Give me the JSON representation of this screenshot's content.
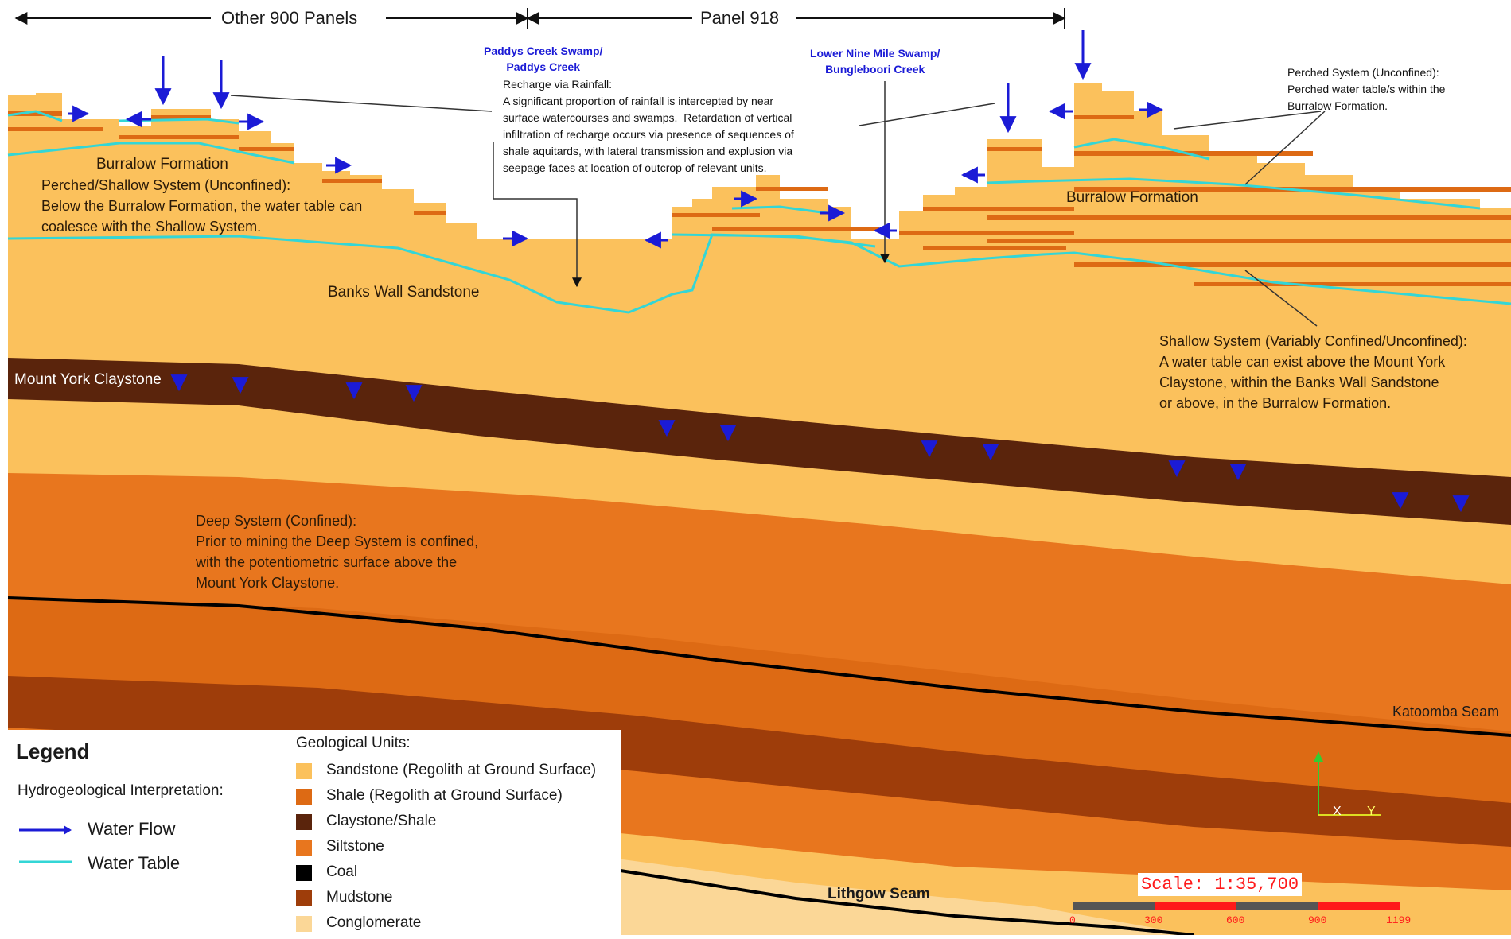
{
  "extent": {
    "other_panels": "Other 900 Panels",
    "panel": "Panel 918"
  },
  "swamps": {
    "paddys": "Paddys Creek Swamp/\nPaddys Creek",
    "lower_nine_mile": "Lower Nine Mile Swamp/\nBungleboori Creek"
  },
  "notes": {
    "recharge": "Recharge via Rainfall:\nA significant proportion of rainfall is intercepted by near\nsurface watercourses and swamps.  Retardation of vertical\ninfiltration of recharge occurs via presence of sequences of\nshale aquitards, with lateral transmission and explusion via\nseepage faces at location of outcrop of relevant units.",
    "perched": "Perched System (Unconfined):\nPerched water table/s within the\nBurralow Formation.",
    "perched_shallow": "Perched/Shallow System (Unconfined):\nBelow the Burralow Formation, the water table can\ncoalesce with the Shallow System.",
    "shallow": "Shallow System (Variably Confined/Unconfined):\nA water table can exist above the Mount York\nClaystone, within the Banks Wall Sandstone\nor above, in the Burralow Formation.",
    "deep": "Deep System (Confined):\nPrior to mining the Deep System is confined,\nwith the potentiometric surface above the\nMount York Claystone."
  },
  "units": {
    "burralow_left": "Burralow Formation",
    "burralow_right": "Burralow Formation",
    "banks_wall": "Banks Wall Sandstone",
    "mount_york": "Mount York Claystone",
    "katoomba": "Katoomba Seam",
    "lithgow": "Lithgow Seam"
  },
  "axes": {
    "x": "X",
    "y": "Y"
  },
  "scale": {
    "label": "Scale: 1:35,700",
    "ticks": [
      "0",
      "300",
      "600",
      "900",
      "1199"
    ]
  },
  "legend": {
    "title": "Legend",
    "hydro_heading": "Hydrogeological Interpretation:",
    "water_flow": "Water Flow",
    "water_table": "Water Table",
    "geo_heading": "Geological Units:",
    "items": [
      {
        "label": "Sandstone (Regolith at Ground Surface)",
        "color": "#fbc15c"
      },
      {
        "label": "Shale (Regolith at Ground Surface)",
        "color": "#dd6a14"
      },
      {
        "label": "Claystone/Shale",
        "color": "#5a240c"
      },
      {
        "label": "Siltstone",
        "color": "#e8761e"
      },
      {
        "label": "Coal",
        "color": "#000000"
      },
      {
        "label": "Mudstone",
        "color": "#9e3d0a"
      },
      {
        "label": "Conglomerate",
        "color": "#fbd797"
      }
    ]
  },
  "colors": {
    "sandstone": "#fbc15c",
    "claystone": "#5a240c",
    "siltstone": "#e8761e",
    "mudstone": "#9e3d0a",
    "conglomerate": "#fbd797",
    "water_table": "#33d6d6",
    "water_flow": "#1b1bd6",
    "coal": "#000000"
  }
}
